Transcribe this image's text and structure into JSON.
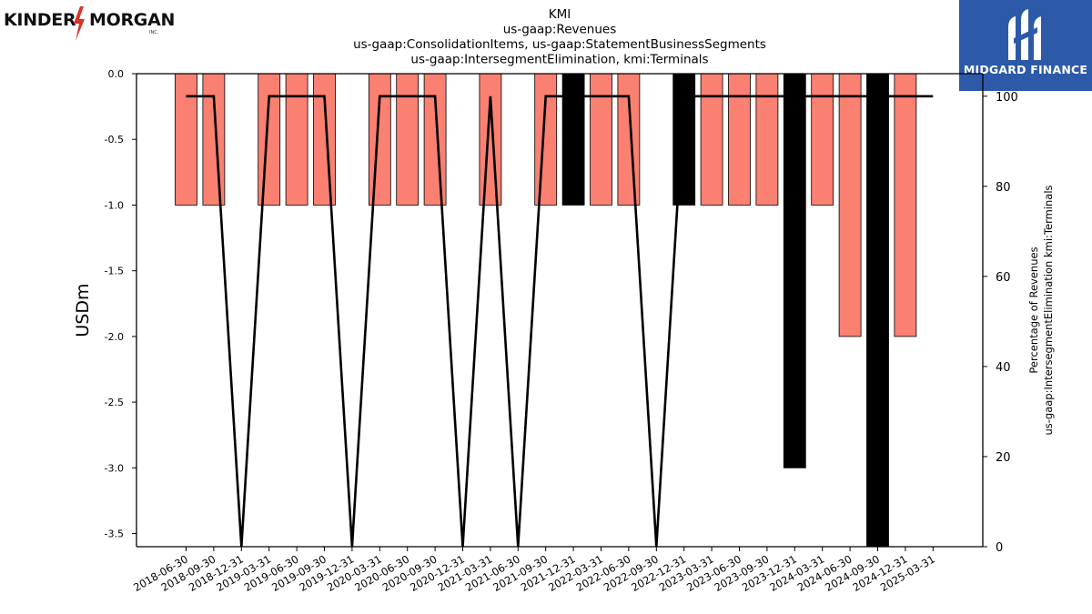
{
  "logos": {
    "left": {
      "word1": "KINDER",
      "word2": "MORGAN",
      "suffix": "INC."
    },
    "right": {
      "brand": "MIDGARD FINANCE"
    }
  },
  "colors": {
    "bar_positive": "#fa8072",
    "bar_negative_change": "#000000",
    "line": "#000000",
    "logo_right_bg": "#2c5aa8",
    "logo_left_bolt": "#d9342b"
  },
  "chart_data": {
    "type": "bar",
    "title_lines": [
      "KMI",
      "us-gaap:Revenues",
      "us-gaap:ConsolidationItems, us-gaap:StatementBusinessSegments",
      "us-gaap:IntersegmentElimination, kmi:Terminals"
    ],
    "ylabel": "USDm",
    "y2label_lines": [
      "Percentage of Revenues",
      "us-gaap:IntersegmentElimination kmi:Terminals"
    ],
    "ylim": [
      -3.6,
      0.0
    ],
    "yticks": [
      0.0,
      -0.5,
      -1.0,
      -1.5,
      -2.0,
      -2.5,
      -3.0,
      -3.5
    ],
    "ytick_labels": [
      "0.0",
      "-0.5",
      "-1.0",
      "-1.5",
      "-2.0",
      "-2.5",
      "-3.0",
      "-3.5"
    ],
    "y2lim": [
      0,
      105
    ],
    "y2ticks": [
      0,
      20,
      40,
      60,
      80,
      100
    ],
    "y2tick_labels": [
      "0",
      "20",
      "40",
      "60",
      "80",
      "100"
    ],
    "grid": false,
    "categories": [
      "2018-06-30",
      "2018-09-30",
      "2018-12-31",
      "2019-03-31",
      "2019-06-30",
      "2019-09-30",
      "2019-12-31",
      "2020-03-31",
      "2020-06-30",
      "2020-09-30",
      "2020-12-31",
      "2021-03-31",
      "2021-06-30",
      "2021-09-30",
      "2021-12-31",
      "2022-03-31",
      "2022-06-30",
      "2022-09-30",
      "2022-12-31",
      "2023-03-31",
      "2023-06-30",
      "2023-09-30",
      "2023-12-31",
      "2024-03-31",
      "2024-06-30",
      "2024-09-30",
      "2024-12-31",
      "2025-03-31"
    ],
    "series": [
      {
        "kind": "bar",
        "values": [
          -1,
          -1,
          null,
          -1,
          -1,
          -1,
          null,
          -1,
          -1,
          -1,
          null,
          -1,
          null,
          -1,
          -1,
          -1,
          -1,
          null,
          -1,
          -1,
          -1,
          -1,
          -3,
          -1,
          -2,
          -3.6,
          -2,
          null
        ],
        "highlight_black": [
          false,
          false,
          false,
          false,
          false,
          false,
          false,
          false,
          false,
          false,
          false,
          false,
          false,
          false,
          true,
          false,
          false,
          false,
          true,
          false,
          false,
          false,
          true,
          false,
          false,
          true,
          false,
          false
        ]
      },
      {
        "kind": "line",
        "axis": "right",
        "values": [
          100,
          100,
          0,
          100,
          100,
          100,
          0,
          100,
          100,
          100,
          0,
          100,
          0,
          100,
          100,
          100,
          100,
          0,
          100,
          100,
          100,
          100,
          100,
          100,
          100,
          100,
          100,
          100
        ]
      }
    ]
  }
}
